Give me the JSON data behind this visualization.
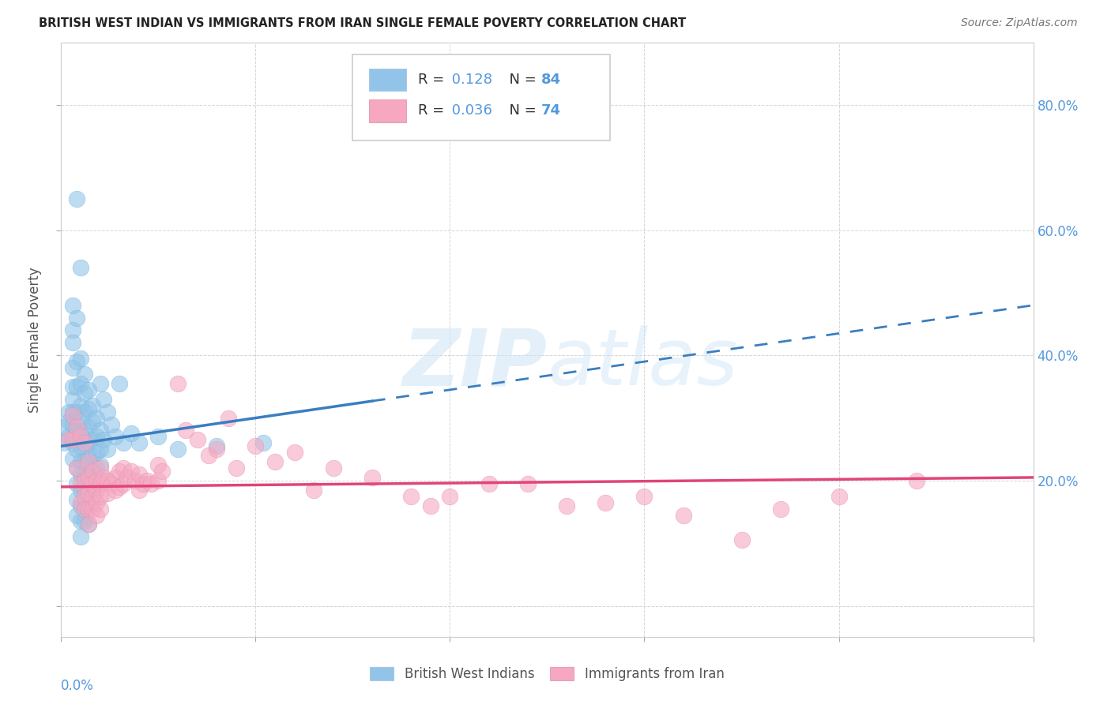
{
  "title": "BRITISH WEST INDIAN VS IMMIGRANTS FROM IRAN SINGLE FEMALE POVERTY CORRELATION CHART",
  "source": "Source: ZipAtlas.com",
  "ylabel": "Single Female Poverty",
  "right_yticks": [
    "80.0%",
    "60.0%",
    "40.0%",
    "20.0%"
  ],
  "right_ytick_vals": [
    0.8,
    0.6,
    0.4,
    0.2
  ],
  "color_blue": "#91c4e8",
  "color_pink": "#f5a8c0",
  "line_blue": "#3a7ebf",
  "line_pink": "#e0457a",
  "axis_label_color": "#5599dd",
  "grid_color": "#cccccc",
  "xlim": [
    0.0,
    0.25
  ],
  "ylim": [
    -0.05,
    0.9
  ],
  "blue_trend": [
    0.255,
    0.48
  ],
  "pink_trend": [
    0.19,
    0.205
  ],
  "blue_points": [
    [
      0.001,
      0.285
    ],
    [
      0.001,
      0.26
    ],
    [
      0.002,
      0.31
    ],
    [
      0.002,
      0.295
    ],
    [
      0.002,
      0.27
    ],
    [
      0.003,
      0.48
    ],
    [
      0.003,
      0.44
    ],
    [
      0.003,
      0.42
    ],
    [
      0.003,
      0.38
    ],
    [
      0.003,
      0.35
    ],
    [
      0.003,
      0.33
    ],
    [
      0.003,
      0.31
    ],
    [
      0.003,
      0.29
    ],
    [
      0.003,
      0.26
    ],
    [
      0.003,
      0.235
    ],
    [
      0.004,
      0.65
    ],
    [
      0.004,
      0.46
    ],
    [
      0.004,
      0.39
    ],
    [
      0.004,
      0.35
    ],
    [
      0.004,
      0.31
    ],
    [
      0.004,
      0.28
    ],
    [
      0.004,
      0.25
    ],
    [
      0.004,
      0.22
    ],
    [
      0.004,
      0.195
    ],
    [
      0.004,
      0.17
    ],
    [
      0.004,
      0.145
    ],
    [
      0.005,
      0.54
    ],
    [
      0.005,
      0.395
    ],
    [
      0.005,
      0.355
    ],
    [
      0.005,
      0.32
    ],
    [
      0.005,
      0.3
    ],
    [
      0.005,
      0.275
    ],
    [
      0.005,
      0.255
    ],
    [
      0.005,
      0.23
    ],
    [
      0.005,
      0.21
    ],
    [
      0.005,
      0.185
    ],
    [
      0.005,
      0.16
    ],
    [
      0.005,
      0.135
    ],
    [
      0.005,
      0.11
    ],
    [
      0.006,
      0.37
    ],
    [
      0.006,
      0.34
    ],
    [
      0.006,
      0.31
    ],
    [
      0.006,
      0.28
    ],
    [
      0.006,
      0.255
    ],
    [
      0.006,
      0.23
    ],
    [
      0.006,
      0.205
    ],
    [
      0.006,
      0.185
    ],
    [
      0.006,
      0.16
    ],
    [
      0.006,
      0.135
    ],
    [
      0.007,
      0.345
    ],
    [
      0.007,
      0.315
    ],
    [
      0.007,
      0.285
    ],
    [
      0.007,
      0.26
    ],
    [
      0.007,
      0.235
    ],
    [
      0.007,
      0.21
    ],
    [
      0.007,
      0.185
    ],
    [
      0.007,
      0.16
    ],
    [
      0.007,
      0.13
    ],
    [
      0.008,
      0.32
    ],
    [
      0.008,
      0.295
    ],
    [
      0.008,
      0.265
    ],
    [
      0.008,
      0.24
    ],
    [
      0.008,
      0.215
    ],
    [
      0.008,
      0.19
    ],
    [
      0.008,
      0.165
    ],
    [
      0.009,
      0.3
    ],
    [
      0.009,
      0.27
    ],
    [
      0.009,
      0.245
    ],
    [
      0.009,
      0.22
    ],
    [
      0.01,
      0.355
    ],
    [
      0.01,
      0.28
    ],
    [
      0.01,
      0.25
    ],
    [
      0.01,
      0.225
    ],
    [
      0.01,
      0.2
    ],
    [
      0.011,
      0.33
    ],
    [
      0.011,
      0.265
    ],
    [
      0.012,
      0.31
    ],
    [
      0.012,
      0.25
    ],
    [
      0.013,
      0.29
    ],
    [
      0.014,
      0.27
    ],
    [
      0.015,
      0.355
    ],
    [
      0.016,
      0.26
    ],
    [
      0.018,
      0.275
    ],
    [
      0.02,
      0.26
    ],
    [
      0.025,
      0.27
    ],
    [
      0.03,
      0.25
    ],
    [
      0.04,
      0.255
    ],
    [
      0.052,
      0.26
    ]
  ],
  "pink_points": [
    [
      0.002,
      0.265
    ],
    [
      0.003,
      0.305
    ],
    [
      0.003,
      0.265
    ],
    [
      0.004,
      0.285
    ],
    [
      0.004,
      0.22
    ],
    [
      0.005,
      0.27
    ],
    [
      0.005,
      0.195
    ],
    [
      0.005,
      0.165
    ],
    [
      0.006,
      0.26
    ],
    [
      0.006,
      0.2
    ],
    [
      0.006,
      0.175
    ],
    [
      0.006,
      0.155
    ],
    [
      0.007,
      0.23
    ],
    [
      0.007,
      0.205
    ],
    [
      0.007,
      0.18
    ],
    [
      0.007,
      0.155
    ],
    [
      0.007,
      0.13
    ],
    [
      0.008,
      0.215
    ],
    [
      0.008,
      0.195
    ],
    [
      0.008,
      0.175
    ],
    [
      0.008,
      0.155
    ],
    [
      0.009,
      0.2
    ],
    [
      0.009,
      0.185
    ],
    [
      0.009,
      0.165
    ],
    [
      0.009,
      0.145
    ],
    [
      0.01,
      0.22
    ],
    [
      0.01,
      0.195
    ],
    [
      0.01,
      0.175
    ],
    [
      0.01,
      0.155
    ],
    [
      0.011,
      0.205
    ],
    [
      0.012,
      0.2
    ],
    [
      0.012,
      0.18
    ],
    [
      0.013,
      0.195
    ],
    [
      0.014,
      0.205
    ],
    [
      0.014,
      0.185
    ],
    [
      0.015,
      0.215
    ],
    [
      0.015,
      0.19
    ],
    [
      0.016,
      0.22
    ],
    [
      0.016,
      0.195
    ],
    [
      0.017,
      0.205
    ],
    [
      0.018,
      0.215
    ],
    [
      0.019,
      0.2
    ],
    [
      0.02,
      0.21
    ],
    [
      0.02,
      0.185
    ],
    [
      0.021,
      0.195
    ],
    [
      0.022,
      0.2
    ],
    [
      0.023,
      0.195
    ],
    [
      0.025,
      0.225
    ],
    [
      0.025,
      0.2
    ],
    [
      0.026,
      0.215
    ],
    [
      0.03,
      0.355
    ],
    [
      0.032,
      0.28
    ],
    [
      0.035,
      0.265
    ],
    [
      0.038,
      0.24
    ],
    [
      0.04,
      0.25
    ],
    [
      0.043,
      0.3
    ],
    [
      0.045,
      0.22
    ],
    [
      0.05,
      0.255
    ],
    [
      0.055,
      0.23
    ],
    [
      0.06,
      0.245
    ],
    [
      0.065,
      0.185
    ],
    [
      0.07,
      0.22
    ],
    [
      0.08,
      0.205
    ],
    [
      0.09,
      0.175
    ],
    [
      0.095,
      0.16
    ],
    [
      0.1,
      0.175
    ],
    [
      0.11,
      0.195
    ],
    [
      0.12,
      0.195
    ],
    [
      0.13,
      0.16
    ],
    [
      0.14,
      0.165
    ],
    [
      0.15,
      0.175
    ],
    [
      0.16,
      0.145
    ],
    [
      0.175,
      0.105
    ],
    [
      0.185,
      0.155
    ],
    [
      0.2,
      0.175
    ],
    [
      0.22,
      0.2
    ]
  ],
  "watermark_zip": "ZIP",
  "watermark_atlas": "atlas",
  "background_color": "#ffffff"
}
